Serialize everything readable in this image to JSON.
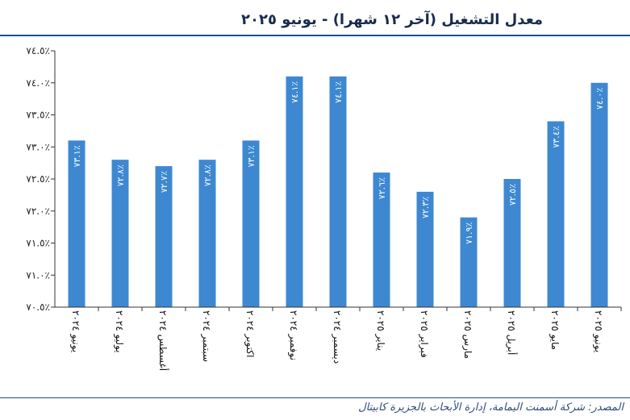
{
  "source": "المصدر: شركة أسمنت اليمامة، إدارة الأبحاث بالجزيرة كابيتال",
  "colors": {
    "bar": "#3e88d1",
    "title": "#1a2b4c",
    "rule": "#1f4e8c"
  },
  "chart_data": {
    "type": "bar",
    "title": "معدل التشغيل (آخر ١٢ شهرا) - يونيو ٢٠٢٥",
    "xlabel": "",
    "ylabel": "",
    "ylim": [
      70.5,
      74.5
    ],
    "yticks": [
      74.5,
      74.0,
      73.5,
      73.0,
      72.5,
      72.0,
      71.5,
      71.0,
      70.5
    ],
    "ytick_labels": [
      "٧٤.٥٪",
      "٧٤.٠٪",
      "٧٣.٥٪",
      "٧٣.٠٪",
      "٧٢.٥٪",
      "٧٢.٠٪",
      "٧١.٥٪",
      "٧١.٠٪",
      "٧٠.٥٪"
    ],
    "grid": false,
    "legend": "none",
    "categories": [
      "يونيو ٢٠٢٤",
      "يوليو ٢٠٢٤",
      "أغسطس ٢٠٢٤",
      "سبتمبر ٢٠٢٤",
      "اكتوبر ٢٠٢٤",
      "نوفمبر ٢٠٢٤",
      "ديسمبر ٢٠٢٤",
      "يناير ٢٠٢٥",
      "فبراير ٢٠٢٥",
      "مارس ٢٠٢٥",
      "أبريل ٢٠٢٥",
      "مايو ٢٠٢٥",
      "يونيو ٢٠٢٥"
    ],
    "values": [
      73.1,
      72.8,
      72.7,
      72.8,
      73.1,
      74.1,
      74.1,
      72.6,
      72.3,
      71.9,
      72.5,
      73.4,
      74.0
    ],
    "data_labels": [
      "٧٣.١٪",
      "٧٢.٨٪",
      "٧٢.٧٪",
      "٧٢.٨٪",
      "٧٣.١٪",
      "٧٤.١٪",
      "٧٤.١٪",
      "٧٢.٦٪",
      "٧٢.٣٪",
      "٧١.٩٪",
      "٧٢.٥٪",
      "٧٣.٤٪",
      "٧٤.٠٪"
    ]
  }
}
